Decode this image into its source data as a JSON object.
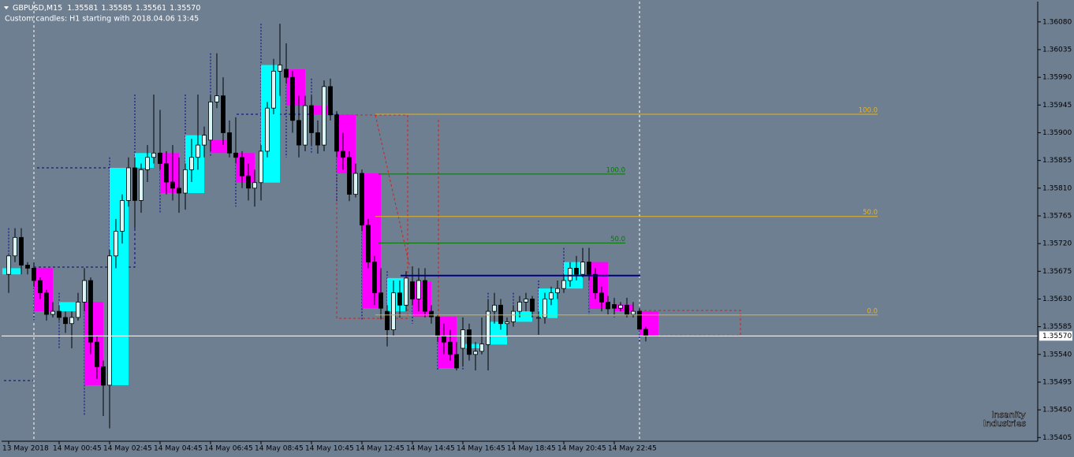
{
  "header": {
    "symbol": "GBPUSD,M15",
    "last_bar": [
      "1.35581",
      "1.35585",
      "1.35561",
      "1.35570"
    ],
    "note": "Custom candles: H1 starting with 2018.04.06 13:45"
  },
  "chart_data": {
    "type": "candlestick",
    "background": "#6f7f92",
    "bull_color": "#d8f6f6",
    "bear_color": "#000000",
    "h1_bull_color": "#00ffff",
    "h1_bear_color": "#ff00ff",
    "h1_wick_color": "#00008b",
    "ylim": [
      1.35399,
      1.36113
    ],
    "yticks": [
      {
        "value": 1.3608,
        "label": "1.36080"
      },
      1.36035,
      {
        "value": 1.3599,
        "label": "1.35990"
      },
      1.35945,
      {
        "value": 1.359,
        "label": "1.35900"
      },
      1.35855,
      {
        "value": 1.3581,
        "label": "1.35810"
      },
      1.35765,
      {
        "value": 1.3572,
        "label": "1.35720"
      },
      1.35675,
      {
        "value": 1.3563,
        "label": "1.35630"
      },
      1.35585,
      {
        "value": 1.3554,
        "label": "1.35540"
      },
      1.35495,
      {
        "value": 1.3545,
        "label": "1.35450"
      },
      1.35405
    ],
    "x_labels": [
      "13 May 2018",
      "14 May 00:45",
      "14 May 02:45",
      "14 May 04:45",
      "14 May 06:45",
      "14 May 08:45",
      "14 May 10:45",
      "14 May 12:45",
      "14 May 14:45",
      "14 May 16:45",
      "14 May 18:45",
      "14 May 20:45",
      "14 May 22:45"
    ],
    "candles_h1": [
      [
        1.3567,
        1.35745,
        1.3564,
        1.3568
      ],
      [
        1.3568,
        1.3569,
        1.35595,
        1.3561
      ],
      [
        1.3561,
        1.3564,
        1.3555,
        1.35625
      ],
      [
        1.35625,
        1.3568,
        1.3544,
        1.3549
      ],
      [
        1.3549,
        1.3586,
        1.3542,
        1.35843
      ],
      [
        1.35843,
        1.35962,
        1.35745,
        1.35867
      ],
      [
        1.35867,
        1.35937,
        1.3577,
        1.35802
      ],
      [
        1.35802,
        1.35962,
        1.35775,
        1.35896
      ],
      [
        1.35888,
        1.36029,
        1.3586,
        1.35867
      ],
      [
        1.35867,
        1.35925,
        1.3578,
        1.35819
      ],
      [
        1.35819,
        1.36077,
        1.3579,
        1.3601
      ],
      [
        1.36003,
        1.36045,
        1.3586,
        1.35944
      ],
      [
        1.35944,
        1.35988,
        1.35866,
        1.35929
      ],
      [
        1.35929,
        1.35935,
        1.35789,
        1.35834
      ],
      [
        1.35834,
        1.3584,
        1.35597,
        1.35615
      ],
      [
        1.3561,
        1.35675,
        1.35553,
        1.35664
      ],
      [
        1.35658,
        1.35683,
        1.3559,
        1.35601
      ],
      [
        1.35601,
        1.35605,
        1.35514,
        1.35518
      ],
      [
        1.3555,
        1.356,
        1.35514,
        1.35557
      ],
      [
        1.35556,
        1.3564,
        1.35514,
        1.35593
      ],
      [
        1.35593,
        1.3564,
        1.35585,
        1.3561
      ],
      [
        1.35599,
        1.3566,
        1.35572,
        1.35647
      ],
      [
        1.35647,
        1.35713,
        1.3564,
        1.3569
      ],
      [
        1.3569,
        1.35713,
        1.35605,
        1.35614
      ],
      [
        1.35621,
        1.35632,
        1.356,
        1.3561
      ],
      [
        1.3561,
        1.35615,
        1.35561,
        1.3557
      ]
    ],
    "candles_m15": [
      [
        1.3567,
        1.357,
        1.3564,
        1.357
      ],
      [
        1.357,
        1.35745,
        1.3569,
        1.3573
      ],
      [
        1.3573,
        1.35745,
        1.3567,
        1.35685
      ],
      [
        1.35685,
        1.3569,
        1.3567,
        1.3568
      ],
      [
        1.3568,
        1.3569,
        1.3565,
        1.3566
      ],
      [
        1.3566,
        1.35665,
        1.3563,
        1.3564
      ],
      [
        1.3564,
        1.35645,
        1.35595,
        1.35605
      ],
      [
        1.35605,
        1.35625,
        1.356,
        1.3561
      ],
      [
        1.3561,
        1.3562,
        1.35595,
        1.356
      ],
      [
        1.356,
        1.3561,
        1.35575,
        1.3559
      ],
      [
        1.3559,
        1.3561,
        1.3555,
        1.356
      ],
      [
        1.356,
        1.3564,
        1.35595,
        1.35625
      ],
      [
        1.35625,
        1.3568,
        1.3561,
        1.3566
      ],
      [
        1.3566,
        1.35665,
        1.3554,
        1.3556
      ],
      [
        1.3556,
        1.3557,
        1.355,
        1.3552
      ],
      [
        1.3552,
        1.3553,
        1.3544,
        1.3549
      ],
      [
        1.3549,
        1.3571,
        1.3542,
        1.357
      ],
      [
        1.357,
        1.3576,
        1.3568,
        1.3574
      ],
      [
        1.3574,
        1.358,
        1.3572,
        1.3579
      ],
      [
        1.3579,
        1.3586,
        1.3578,
        1.35843
      ],
      [
        1.35843,
        1.3586,
        1.35745,
        1.3579
      ],
      [
        1.3579,
        1.3585,
        1.3577,
        1.3584
      ],
      [
        1.3584,
        1.3588,
        1.3582,
        1.3586
      ],
      [
        1.3586,
        1.35962,
        1.3585,
        1.35867
      ],
      [
        1.35867,
        1.35937,
        1.3584,
        1.3585
      ],
      [
        1.3585,
        1.3587,
        1.358,
        1.3582
      ],
      [
        1.3582,
        1.3588,
        1.3579,
        1.3581
      ],
      [
        1.3581,
        1.3586,
        1.3577,
        1.35802
      ],
      [
        1.35802,
        1.3585,
        1.35775,
        1.3584
      ],
      [
        1.3584,
        1.3589,
        1.3582,
        1.3586
      ],
      [
        1.3586,
        1.35962,
        1.3584,
        1.3588
      ],
      [
        1.3588,
        1.3591,
        1.3586,
        1.35896
      ],
      [
        1.35888,
        1.3596,
        1.3587,
        1.3595
      ],
      [
        1.3595,
        1.36029,
        1.3594,
        1.3596
      ],
      [
        1.3596,
        1.3599,
        1.3588,
        1.359
      ],
      [
        1.359,
        1.3592,
        1.3586,
        1.35867
      ],
      [
        1.35867,
        1.35925,
        1.3585,
        1.3586
      ],
      [
        1.3586,
        1.3587,
        1.3581,
        1.3583
      ],
      [
        1.3583,
        1.3585,
        1.3579,
        1.3581
      ],
      [
        1.3581,
        1.3584,
        1.3578,
        1.35819
      ],
      [
        1.35819,
        1.3588,
        1.3579,
        1.3587
      ],
      [
        1.3587,
        1.3595,
        1.3586,
        1.3594
      ],
      [
        1.3594,
        1.3602,
        1.3593,
        1.36
      ],
      [
        1.36,
        1.36077,
        1.3596,
        1.3601
      ],
      [
        1.36003,
        1.36045,
        1.3598,
        1.3599
      ],
      [
        1.3599,
        1.36,
        1.359,
        1.3592
      ],
      [
        1.3592,
        1.3596,
        1.3586,
        1.3588
      ],
      [
        1.3588,
        1.3596,
        1.3587,
        1.35944
      ],
      [
        1.35944,
        1.3596,
        1.3588,
        1.359
      ],
      [
        1.359,
        1.3592,
        1.35866,
        1.3588
      ],
      [
        1.3588,
        1.35985,
        1.3587,
        1.35975
      ],
      [
        1.35975,
        1.35988,
        1.3592,
        1.35929
      ],
      [
        1.35929,
        1.35935,
        1.3586,
        1.3587
      ],
      [
        1.3587,
        1.359,
        1.3584,
        1.3586
      ],
      [
        1.3586,
        1.3587,
        1.35789,
        1.358
      ],
      [
        1.358,
        1.3585,
        1.35795,
        1.35834
      ],
      [
        1.35834,
        1.3584,
        1.3574,
        1.3575
      ],
      [
        1.3575,
        1.3576,
        1.3568,
        1.3569
      ],
      [
        1.3569,
        1.357,
        1.3562,
        1.3564
      ],
      [
        1.3564,
        1.3568,
        1.35597,
        1.35615
      ],
      [
        1.3561,
        1.3562,
        1.35553,
        1.3558
      ],
      [
        1.3558,
        1.3566,
        1.3557,
        1.3564
      ],
      [
        1.3564,
        1.3566,
        1.356,
        1.3562
      ],
      [
        1.3562,
        1.35675,
        1.3561,
        1.35664
      ],
      [
        1.35658,
        1.35683,
        1.3562,
        1.3563
      ],
      [
        1.3563,
        1.3568,
        1.3561,
        1.3566
      ],
      [
        1.3566,
        1.3568,
        1.356,
        1.3561
      ],
      [
        1.3561,
        1.3562,
        1.3559,
        1.35601
      ],
      [
        1.35601,
        1.35605,
        1.3556,
        1.3557
      ],
      [
        1.3557,
        1.3559,
        1.3554,
        1.3556
      ],
      [
        1.3556,
        1.3558,
        1.3553,
        1.3554
      ],
      [
        1.3554,
        1.3556,
        1.35514,
        1.35518
      ],
      [
        1.3555,
        1.356,
        1.3552,
        1.3558
      ],
      [
        1.3558,
        1.3559,
        1.3553,
        1.3554
      ],
      [
        1.3554,
        1.3556,
        1.35514,
        1.35545
      ],
      [
        1.35545,
        1.356,
        1.3554,
        1.35557
      ],
      [
        1.35556,
        1.3563,
        1.35514,
        1.3561
      ],
      [
        1.3561,
        1.3564,
        1.3559,
        1.3562
      ],
      [
        1.3562,
        1.3563,
        1.3558,
        1.3559
      ],
      [
        1.3559,
        1.356,
        1.3557,
        1.35593
      ],
      [
        1.35593,
        1.3562,
        1.35585,
        1.3561
      ],
      [
        1.3561,
        1.35635,
        1.356,
        1.35625
      ],
      [
        1.35625,
        1.3564,
        1.3561,
        1.3563
      ],
      [
        1.3563,
        1.35635,
        1.356,
        1.3561
      ],
      [
        1.35599,
        1.3561,
        1.35572,
        1.356
      ],
      [
        1.356,
        1.3564,
        1.3559,
        1.3563
      ],
      [
        1.3563,
        1.3565,
        1.3562,
        1.3564
      ],
      [
        1.3564,
        1.3566,
        1.3563,
        1.35647
      ],
      [
        1.35647,
        1.3567,
        1.3564,
        1.3566
      ],
      [
        1.3566,
        1.3569,
        1.3565,
        1.3568
      ],
      [
        1.3568,
        1.357,
        1.3566,
        1.3567
      ],
      [
        1.3567,
        1.35713,
        1.35665,
        1.3569
      ],
      [
        1.3569,
        1.35713,
        1.3566,
        1.3567
      ],
      [
        1.3567,
        1.3568,
        1.3563,
        1.3564
      ],
      [
        1.3564,
        1.3565,
        1.3561,
        1.35625
      ],
      [
        1.35625,
        1.35635,
        1.35605,
        1.35614
      ],
      [
        1.35621,
        1.3563,
        1.35605,
        1.35615
      ],
      [
        1.35615,
        1.35625,
        1.3561,
        1.3562
      ],
      [
        1.3562,
        1.35632,
        1.356,
        1.35605
      ],
      [
        1.35605,
        1.35625,
        1.356,
        1.3561
      ],
      [
        1.3561,
        1.35615,
        1.3558,
        1.35581
      ],
      [
        1.35581,
        1.35585,
        1.35561,
        1.3557
      ]
    ],
    "levels": [
      {
        "label": "100.0",
        "value": 1.3593,
        "color": "#e6b422"
      },
      {
        "label": "50.0",
        "value": 1.35764,
        "color": "#e6b422"
      },
      {
        "label": "0.0",
        "value": 1.35604,
        "color": "#e6b422"
      },
      {
        "label": "100.0",
        "value": 1.35833,
        "color": "#007a00"
      },
      {
        "label": "50.0",
        "value": 1.35721,
        "color": "#007a00"
      }
    ],
    "line": {
      "value": 1.35668,
      "color": "#000080"
    },
    "last_price": {
      "value": 1.3557,
      "label": "1.35570"
    },
    "watermark": [
      "Insanity",
      "Industries"
    ]
  }
}
